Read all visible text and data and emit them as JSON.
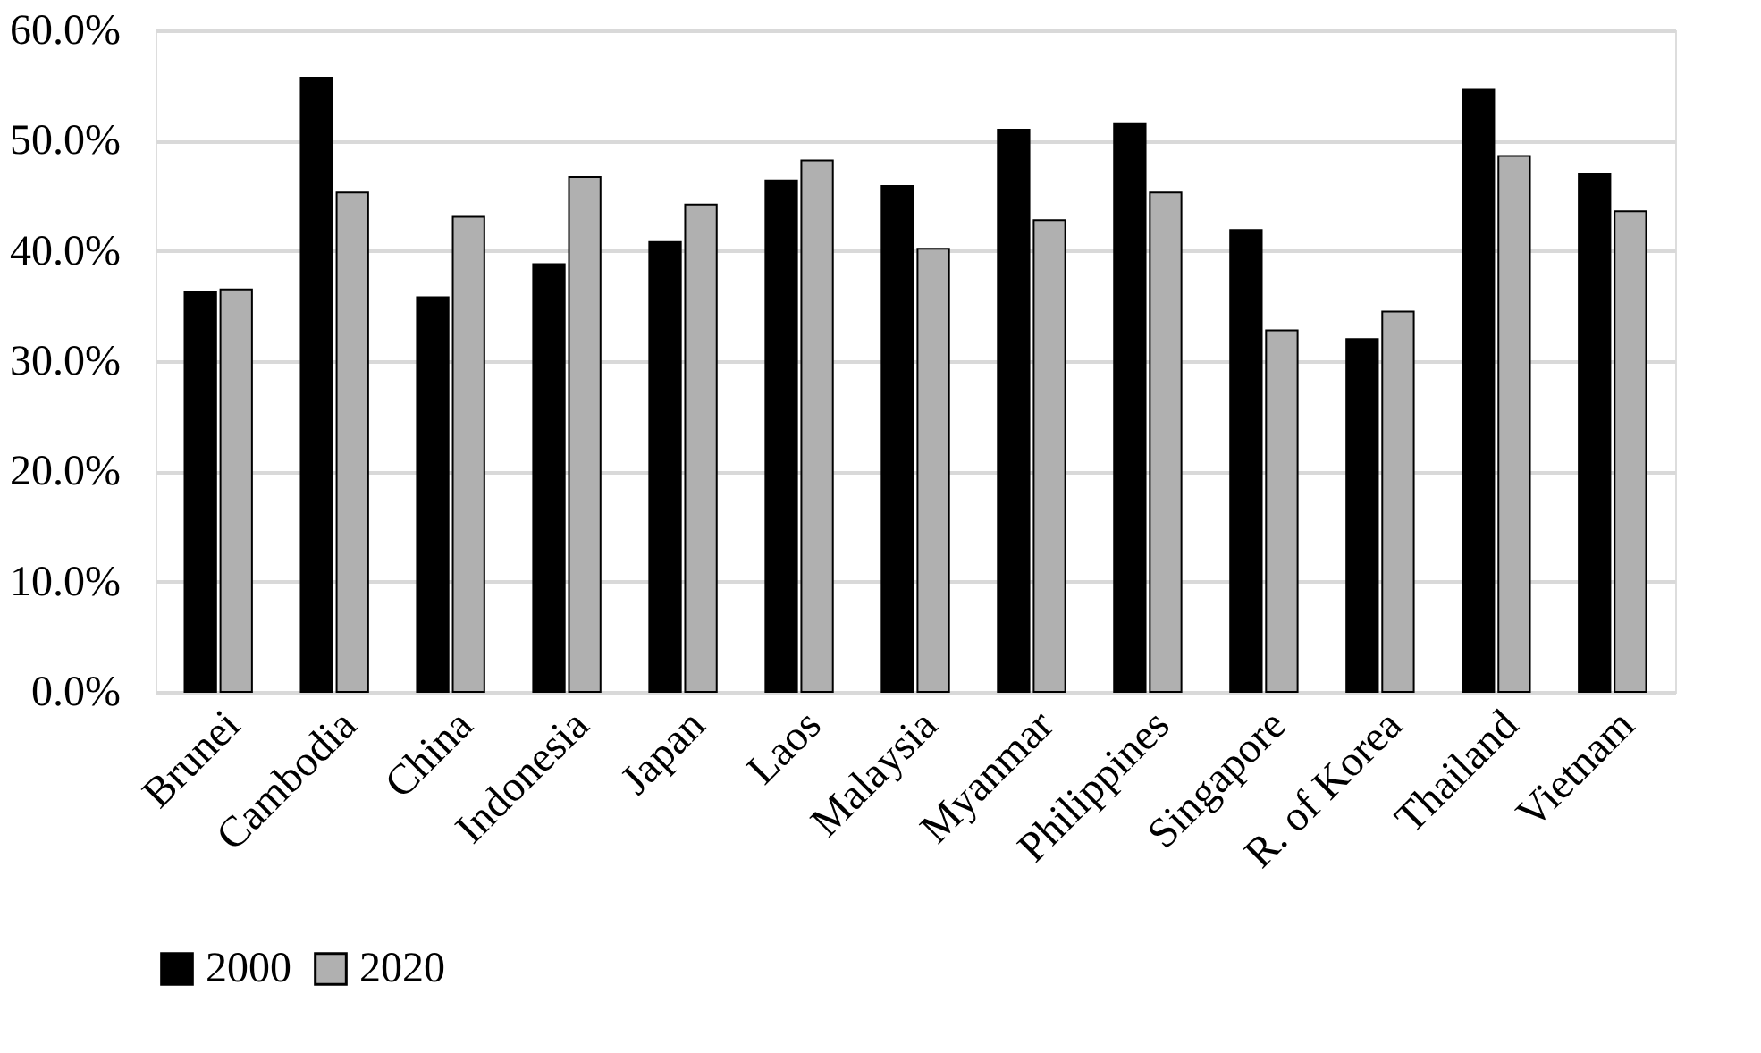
{
  "chart_data": {
    "type": "bar",
    "categories": [
      "Brunei",
      "Cambodia",
      "China",
      "Indonesia",
      "Japan",
      "Laos",
      "Malaysia",
      "Myanmar",
      "Philippines",
      "Singapore",
      "R. of Korea",
      "Thailand",
      "Vietnam"
    ],
    "series": [
      {
        "name": "2000",
        "color": "#000000",
        "values": [
          36.3,
          55.7,
          35.8,
          38.8,
          40.8,
          46.4,
          45.9,
          51.0,
          51.5,
          41.9,
          32.0,
          54.6,
          47.0
        ]
      },
      {
        "name": "2020",
        "color": "#b0b0b0",
        "values": [
          36.5,
          45.3,
          43.1,
          46.7,
          44.2,
          48.2,
          40.2,
          42.8,
          45.3,
          32.8,
          34.5,
          48.6,
          43.6
        ]
      }
    ],
    "ylim": [
      0,
      60
    ],
    "yticks": [
      {
        "value": 0,
        "label": "0.0%"
      },
      {
        "value": 10,
        "label": "10.0%"
      },
      {
        "value": 20,
        "label": "20.0%"
      },
      {
        "value": 30,
        "label": "30.0%"
      },
      {
        "value": 40,
        "label": "40.0%"
      },
      {
        "value": 50,
        "label": "50.0%"
      },
      {
        "value": 60,
        "label": "60.0%"
      }
    ],
    "grid": "y",
    "legend": "bottom"
  }
}
